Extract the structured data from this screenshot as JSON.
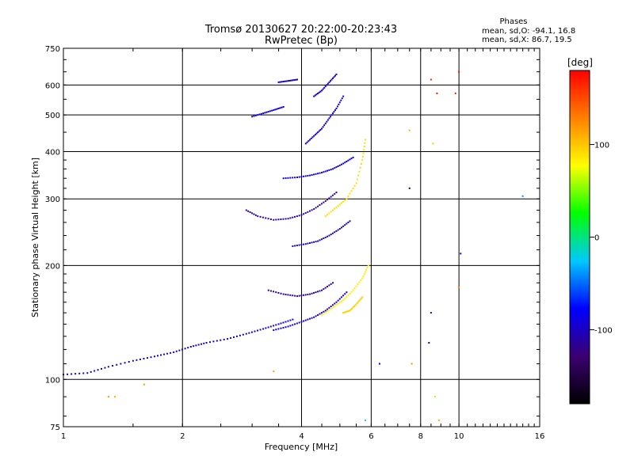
{
  "chart_data": {
    "type": "scatter",
    "title": "Tromsø 20130627 20:22:00-20:23:43",
    "subtitle": "RwPretec (Bp)",
    "xlabel": "Frequency [MHz]",
    "ylabel": "Stationary phase Virtual Height [km]",
    "xscale": "log2",
    "yscale": "log",
    "xlim": [
      1,
      16
    ],
    "ylim": [
      75,
      750
    ],
    "x_ticks": [
      1,
      2,
      4,
      6,
      8,
      10,
      16
    ],
    "x_tick_labels": [
      "1",
      "2",
      "4",
      "6",
      "8",
      "10",
      "16"
    ],
    "y_ticks": [
      75,
      100,
      200,
      300,
      400,
      500,
      600,
      750
    ],
    "y_tick_labels": [
      "75",
      "100",
      "200",
      "300",
      "400",
      "500",
      "600",
      "750"
    ],
    "grid": true,
    "stats": {
      "heading": "Phases",
      "line_o": "mean, sd,O: -94.1, 16.8",
      "line_x": "mean, sd,X:  86.7, 19.5"
    },
    "colorbar": {
      "label": "[deg]",
      "range": [
        -180,
        180
      ],
      "ticks": [
        100,
        0,
        -100
      ],
      "tick_labels": [
        "100",
        "0",
        "-100"
      ],
      "colors": [
        "#000000",
        "#3b0070",
        "#0000ff",
        "#00c8ff",
        "#00ff00",
        "#ffff00",
        "#ff8000",
        "#ff0000"
      ]
    },
    "series": [
      {
        "mode": "O",
        "phase_mean": -94.1,
        "traces": [
          {
            "x": [
              1.0,
              1.15,
              1.3,
              1.5,
              1.7,
              1.9,
              2.1,
              2.3,
              2.6,
              2.9,
              3.2,
              3.5,
              3.8
            ],
            "y": [
              103,
              104,
              108,
              112,
              115,
              118,
              122,
              125,
              128,
              132,
              136,
              140,
              144
            ],
            "phase": -96
          },
          {
            "x": [
              2.9,
              3.1,
              3.4,
              3.7,
              4.0,
              4.3,
              4.6,
              4.9
            ],
            "y": [
              280,
              270,
              264,
              266,
              272,
              282,
              296,
              312
            ],
            "phase": -110
          },
          {
            "x": [
              3.6,
              3.9,
              4.2,
              4.5,
              4.8,
              5.1,
              5.4
            ],
            "y": [
              340,
              342,
              346,
              352,
              360,
              372,
              386
            ],
            "phase": -90
          },
          {
            "x": [
              3.3,
              3.6,
              3.9,
              4.2,
              4.5,
              4.8
            ],
            "y": [
              172,
              168,
              166,
              168,
              172,
              180
            ],
            "phase": -112
          },
          {
            "x": [
              3.4,
              3.7,
              4.0,
              4.3,
              4.6,
              4.9,
              5.2
            ],
            "y": [
              135,
              138,
              142,
              146,
              152,
              160,
              170
            ],
            "phase": -98
          },
          {
            "x": [
              3.8,
              4.1,
              4.4,
              4.7,
              5.0,
              5.3
            ],
            "y": [
              225,
              228,
              232,
              240,
              250,
              262
            ],
            "phase": -105
          },
          {
            "x": [
              4.1,
              4.3,
              4.5,
              4.7,
              4.9,
              5.1
            ],
            "y": [
              420,
              440,
              460,
              490,
              520,
              560
            ],
            "phase": -92
          },
          {
            "x": [
              4.3,
              4.5,
              4.7,
              4.9
            ],
            "y": [
              560,
              580,
              610,
              640
            ],
            "phase": -95
          },
          {
            "x": [
              3.0,
              3.2,
              3.4,
              3.6
            ],
            "y": [
              495,
              505,
              515,
              525
            ],
            "phase": -90
          },
          {
            "x": [
              3.5,
              3.7,
              3.9
            ],
            "y": [
              610,
              615,
              620
            ],
            "phase": -100
          }
        ]
      },
      {
        "mode": "X",
        "phase_mean": 86.7,
        "traces": [
          {
            "x": [
              4.6,
              4.9,
              5.2,
              5.5,
              5.7,
              5.8
            ],
            "y": [
              270,
              285,
              300,
              330,
              380,
              430
            ],
            "phase": 90
          },
          {
            "x": [
              4.5,
              4.8,
              5.1,
              5.4,
              5.7,
              5.9
            ],
            "y": [
              148,
              155,
              162,
              172,
              185,
              200
            ],
            "phase": 84
          },
          {
            "x": [
              5.1,
              5.3,
              5.5,
              5.7
            ],
            "y": [
              150,
              152,
              158,
              165
            ],
            "phase": 95
          }
        ]
      }
    ],
    "scattered_points": [
      {
        "x": 6.3,
        "y": 110,
        "phase": -80
      },
      {
        "x": 7.5,
        "y": 320,
        "phase": -150
      },
      {
        "x": 8.5,
        "y": 620,
        "phase": 165
      },
      {
        "x": 8.8,
        "y": 570,
        "phase": 170
      },
      {
        "x": 8.6,
        "y": 420,
        "phase": 100
      },
      {
        "x": 9.8,
        "y": 570,
        "phase": 165
      },
      {
        "x": 10.0,
        "y": 650,
        "phase": 175
      },
      {
        "x": 8.5,
        "y": 150,
        "phase": -120
      },
      {
        "x": 8.4,
        "y": 125,
        "phase": -150
      },
      {
        "x": 8.7,
        "y": 90,
        "phase": 60
      },
      {
        "x": 8.9,
        "y": 78,
        "phase": 110
      },
      {
        "x": 10.1,
        "y": 215,
        "phase": -90
      },
      {
        "x": 10.0,
        "y": 175,
        "phase": 130
      },
      {
        "x": 14.5,
        "y": 305,
        "phase": -40
      },
      {
        "x": 7.5,
        "y": 455,
        "phase": 110
      },
      {
        "x": 7.6,
        "y": 110,
        "phase": 120
      },
      {
        "x": 1.3,
        "y": 90,
        "phase": 120
      },
      {
        "x": 1.35,
        "y": 90,
        "phase": 110
      },
      {
        "x": 1.6,
        "y": 97,
        "phase": 120
      },
      {
        "x": 3.4,
        "y": 105,
        "phase": 115
      },
      {
        "x": 5.8,
        "y": 78,
        "phase": -20
      }
    ]
  }
}
